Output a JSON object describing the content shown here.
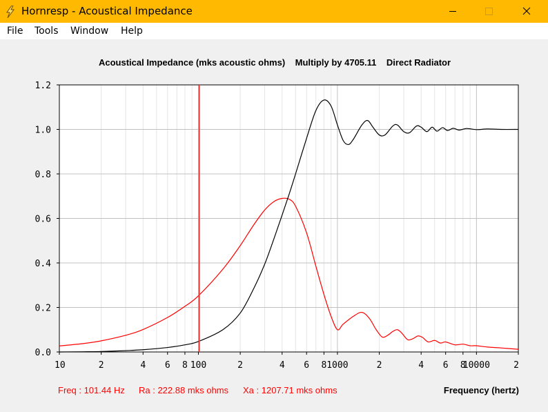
{
  "window": {
    "title": "Hornresp - Acoustical Impedance",
    "colors": {
      "titlebar": "#ffb900",
      "client": "#f0f0f0"
    }
  },
  "menubar": {
    "items": [
      "File",
      "Tools",
      "Window",
      "Help"
    ]
  },
  "readout": {
    "freq": "Freq : 101.44 Hz",
    "ra": "Ra : 222.88 mks ohms",
    "xa": "Xa : 1207.71 mks ohms"
  },
  "chart_data": {
    "type": "line",
    "title": "Acoustical Impedance (mks acoustic ohms)    Multiply by 4705.11    Direct Radiator",
    "xlabel": "Frequency (hertz)",
    "ylabel": "",
    "x_scale": "log",
    "xlim": [
      10,
      20000
    ],
    "ylim": [
      0,
      1.2
    ],
    "y_ticks": [
      "0.0",
      "0.2",
      "0.4",
      "0.6",
      "0.8",
      "1.0",
      "1.2"
    ],
    "x_ticks": [
      {
        "value": 10,
        "label": "10"
      },
      {
        "value": 20,
        "label": "2"
      },
      {
        "value": 40,
        "label": "4"
      },
      {
        "value": 60,
        "label": "6"
      },
      {
        "value": 80,
        "label": "8"
      },
      {
        "value": 100,
        "label": "100"
      },
      {
        "value": 200,
        "label": "2"
      },
      {
        "value": 400,
        "label": "4"
      },
      {
        "value": 600,
        "label": "6"
      },
      {
        "value": 800,
        "label": "8"
      },
      {
        "value": 1000,
        "label": "1000"
      },
      {
        "value": 2000,
        "label": "2"
      },
      {
        "value": 4000,
        "label": "4"
      },
      {
        "value": 6000,
        "label": "6"
      },
      {
        "value": 8000,
        "label": "8"
      },
      {
        "value": 10000,
        "label": "10000"
      },
      {
        "value": 20000,
        "label": "2"
      }
    ],
    "grid": true,
    "cursor_frequency": 101.44,
    "series": [
      {
        "name": "",
        "color": "#ff0000",
        "points": [
          [
            10,
            0.027
          ],
          [
            15,
            0.038
          ],
          [
            20,
            0.05
          ],
          [
            30,
            0.075
          ],
          [
            40,
            0.101
          ],
          [
            60,
            0.155
          ],
          [
            80,
            0.205
          ],
          [
            100,
            0.252
          ],
          [
            150,
            0.372
          ],
          [
            200,
            0.478
          ],
          [
            250,
            0.571
          ],
          [
            300,
            0.638
          ],
          [
            350,
            0.676
          ],
          [
            400,
            0.69
          ],
          [
            450,
            0.686
          ],
          [
            500,
            0.655
          ],
          [
            600,
            0.535
          ],
          [
            700,
            0.385
          ],
          [
            800,
            0.258
          ],
          [
            900,
            0.16
          ],
          [
            1000,
            0.1
          ],
          [
            1100,
            0.125
          ],
          [
            1300,
            0.16
          ],
          [
            1500,
            0.178
          ],
          [
            1700,
            0.15
          ],
          [
            1900,
            0.1
          ],
          [
            2100,
            0.067
          ],
          [
            2300,
            0.075
          ],
          [
            2500,
            0.092
          ],
          [
            2700,
            0.1
          ],
          [
            2900,
            0.085
          ],
          [
            3200,
            0.055
          ],
          [
            3500,
            0.06
          ],
          [
            3800,
            0.072
          ],
          [
            4100,
            0.065
          ],
          [
            4500,
            0.045
          ],
          [
            5000,
            0.052
          ],
          [
            5500,
            0.04
          ],
          [
            6000,
            0.045
          ],
          [
            7000,
            0.032
          ],
          [
            8000,
            0.035
          ],
          [
            9000,
            0.028
          ],
          [
            10000,
            0.028
          ],
          [
            12000,
            0.022
          ],
          [
            15000,
            0.018
          ],
          [
            20000,
            0.012
          ]
        ]
      },
      {
        "name": "",
        "color": "#000000",
        "points": [
          [
            10,
            0.0
          ],
          [
            15,
            0.001
          ],
          [
            20,
            0.002
          ],
          [
            30,
            0.006
          ],
          [
            40,
            0.01
          ],
          [
            60,
            0.02
          ],
          [
            80,
            0.032
          ],
          [
            100,
            0.047
          ],
          [
            150,
            0.1
          ],
          [
            200,
            0.175
          ],
          [
            250,
            0.285
          ],
          [
            300,
            0.395
          ],
          [
            350,
            0.51
          ],
          [
            400,
            0.615
          ],
          [
            450,
            0.71
          ],
          [
            500,
            0.8
          ],
          [
            600,
            0.96
          ],
          [
            700,
            1.085
          ],
          [
            800,
            1.132
          ],
          [
            900,
            1.105
          ],
          [
            1000,
            1.02
          ],
          [
            1100,
            0.95
          ],
          [
            1200,
            0.932
          ],
          [
            1300,
            0.955
          ],
          [
            1500,
            1.02
          ],
          [
            1650,
            1.04
          ],
          [
            1800,
            1.01
          ],
          [
            2000,
            0.975
          ],
          [
            2200,
            0.975
          ],
          [
            2500,
            1.015
          ],
          [
            2700,
            1.02
          ],
          [
            3000,
            0.99
          ],
          [
            3300,
            0.985
          ],
          [
            3700,
            1.015
          ],
          [
            4000,
            1.01
          ],
          [
            4400,
            0.99
          ],
          [
            4800,
            1.01
          ],
          [
            5200,
            0.992
          ],
          [
            5700,
            1.008
          ],
          [
            6200,
            0.995
          ],
          [
            6800,
            1.005
          ],
          [
            7500,
            0.997
          ],
          [
            8500,
            1.004
          ],
          [
            10000,
            0.999
          ],
          [
            12000,
            1.002
          ],
          [
            15000,
            1.0
          ],
          [
            20000,
            1.0
          ]
        ]
      }
    ]
  }
}
